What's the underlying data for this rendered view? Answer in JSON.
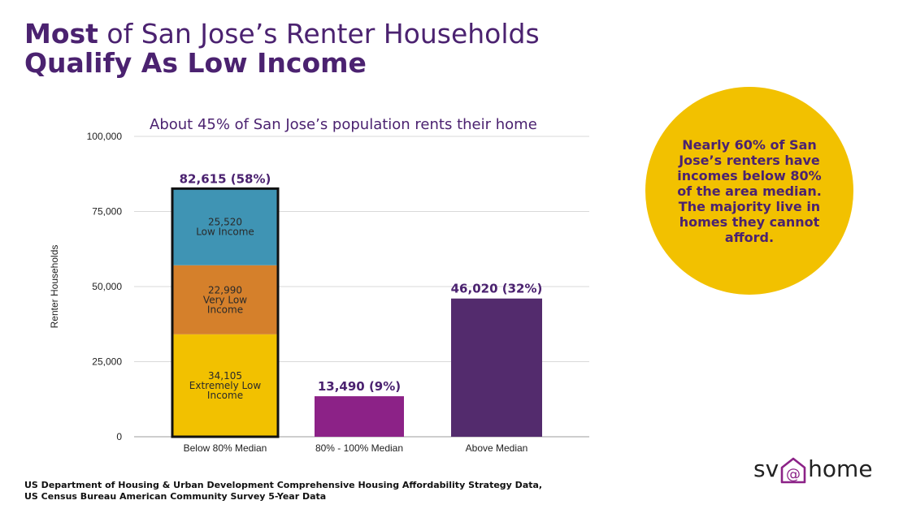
{
  "header": {
    "title_bold1": "Most",
    "title_rest1": " of San Jose’s Renter Households",
    "title_line2": "Qualify As Low Income"
  },
  "callout": {
    "text": "Nearly 60% of San Jose’s renters have incomes below 80% of the area median. The majority live in homes they cannot afford."
  },
  "source": {
    "line1": "US Department of Housing & Urban Development Comprehensive Housing Affordability Strategy Data,",
    "line2": "US Census Bureau American Community Survey 5-Year Data"
  },
  "logo": {
    "left": "sv",
    "right": "home",
    "icon": "house-at-icon"
  },
  "colors": {
    "purple": "#4b2270",
    "dark_purple_bar": "#532b6d",
    "magenta_bar": "#8c2287",
    "blue": "#3f94b4",
    "orange": "#d5802b",
    "yellow": "#f2c100",
    "gridline": "#d9d9d9"
  },
  "chart_data": {
    "type": "bar",
    "title": "",
    "subtitle": "About 45% of San Jose’s population rents their home",
    "xlabel": "",
    "ylabel": "Renter Households",
    "ylim": [
      0,
      100000
    ],
    "yticks": [
      0,
      25000,
      50000,
      75000,
      100000
    ],
    "ytick_labels": [
      "0",
      "25,000",
      "50,000",
      "75,000",
      "100,000"
    ],
    "grid": true,
    "categories": [
      "Below 80% Median",
      "80% - 100% Median",
      "Above Median"
    ],
    "bars": [
      {
        "category": "Below 80% Median",
        "total": 82615,
        "label": "82,615 (58%)",
        "outlined": true,
        "segments": [
          {
            "name": "Extremely Low Income",
            "value": 34105,
            "color": "#f2c100",
            "lines": [
              "34,105",
              "Extremely Low",
              "Income"
            ]
          },
          {
            "name": "Very Low Income",
            "value": 22990,
            "color": "#d5802b",
            "lines": [
              "22,990",
              "Very Low",
              "Income"
            ]
          },
          {
            "name": "Low Income",
            "value": 25520,
            "color": "#3f94b4",
            "lines": [
              "25,520",
              "Low Income"
            ]
          }
        ]
      },
      {
        "category": "80% - 100% Median",
        "total": 13490,
        "label": "13,490 (9%)",
        "outlined": false,
        "segments": [
          {
            "name": "80% - 100% Median",
            "value": 13490,
            "color": "#8c2287",
            "lines": []
          }
        ]
      },
      {
        "category": "Above Median",
        "total": 46020,
        "label": "46,020 (32%)",
        "outlined": false,
        "segments": [
          {
            "name": "Above Median",
            "value": 46020,
            "color": "#532b6d",
            "lines": []
          }
        ]
      }
    ]
  }
}
